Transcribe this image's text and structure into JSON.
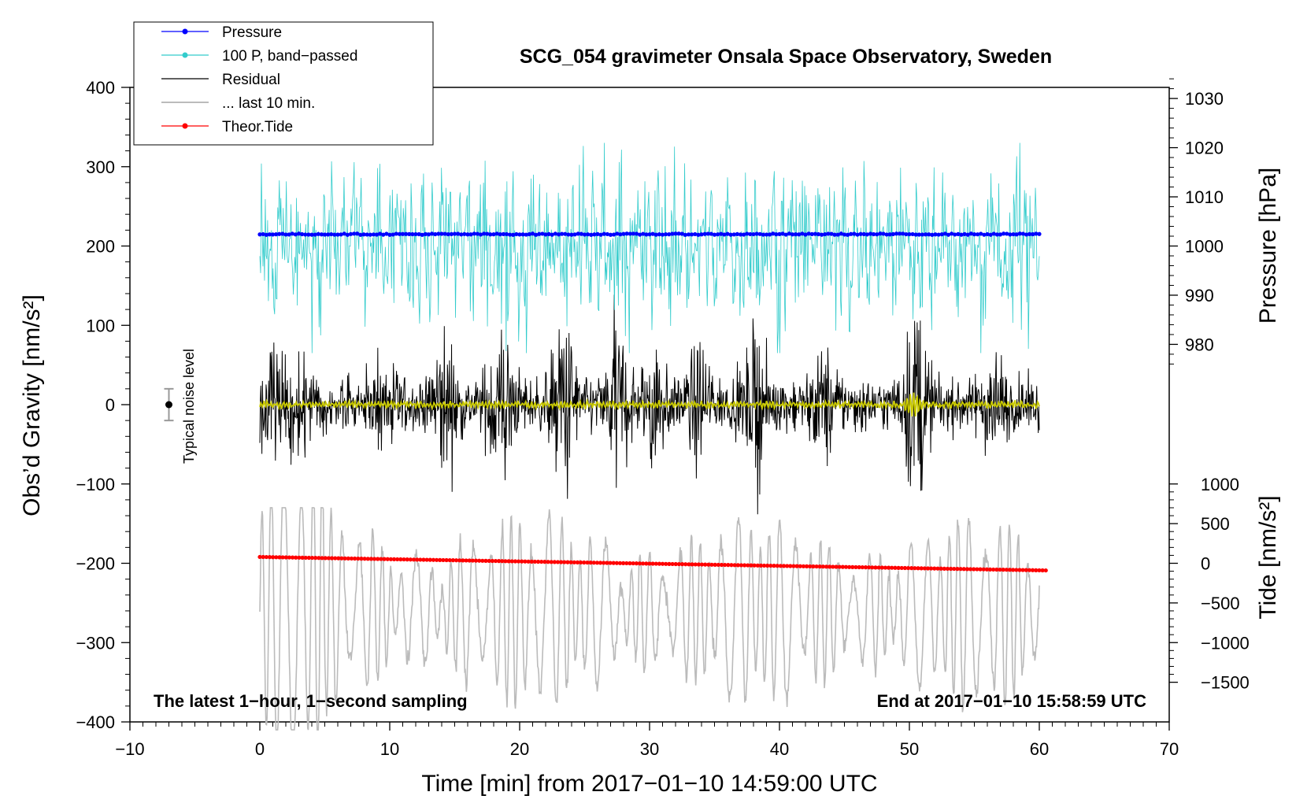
{
  "chart_data": {
    "type": "line",
    "title": "SCG_054 gravimeter Onsala Space Observatory, Sweden",
    "xlabel": "Time [min] from 2017−01−10 14:59:00 UTC",
    "ylabel": "Obs’d Gravity [nm/s²]",
    "xlim": [
      -10,
      70
    ],
    "ylim": [
      -400,
      400
    ],
    "x_ticks": [
      {
        "value": -10,
        "label": "−10"
      },
      {
        "value": 0,
        "label": "0"
      },
      {
        "value": 10,
        "label": "10"
      },
      {
        "value": 20,
        "label": "20"
      },
      {
        "value": 30,
        "label": "30"
      },
      {
        "value": 40,
        "label": "40"
      },
      {
        "value": 50,
        "label": "50"
      },
      {
        "value": 60,
        "label": "60"
      },
      {
        "value": 70,
        "label": "70"
      }
    ],
    "y_ticks": [
      {
        "value": 400,
        "label": "400"
      },
      {
        "value": 300,
        "label": "300"
      },
      {
        "value": 200,
        "label": "200"
      },
      {
        "value": 100,
        "label": "100"
      },
      {
        "value": 0,
        "label": "0"
      },
      {
        "value": -100,
        "label": "−100"
      },
      {
        "value": -200,
        "label": "−200"
      },
      {
        "value": -300,
        "label": "−300"
      },
      {
        "value": -400,
        "label": "−400"
      }
    ],
    "pressure_axis": {
      "label": "Pressure [hPa]",
      "ticks": [
        {
          "value": 1030,
          "label": "1030"
        },
        {
          "value": 1020,
          "label": "1020"
        },
        {
          "value": 1010,
          "label": "1010"
        },
        {
          "value": 1000,
          "label": "1000"
        },
        {
          "value": 990,
          "label": "990"
        },
        {
          "value": 980,
          "label": "980"
        }
      ],
      "gravity_at_1000hPa": 200,
      "gravity_per_hPa": 6.2
    },
    "tide_axis": {
      "label": "Tide [nm/s²]",
      "ticks": [
        {
          "value": 1000,
          "label": "1000"
        },
        {
          "value": 500,
          "label": "500"
        },
        {
          "value": 0,
          "label": "0"
        },
        {
          "value": -500,
          "label": "−500"
        },
        {
          "value": -1000,
          "label": "−1000"
        },
        {
          "value": -1500,
          "label": "−1500"
        }
      ],
      "gravity_at_zero": -200,
      "gravity_per_unit": 0.1
    },
    "series": [
      {
        "name": "Pressure",
        "axis": "pressure",
        "x": [
          0,
          60
        ],
        "y": [
          1002.4,
          1002.4
        ],
        "style": "line-markers",
        "color": "#0000ff"
      },
      {
        "name": "100 P, band−passed",
        "axis": "gravity",
        "x_range": [
          0,
          60
        ],
        "center": 200,
        "style": "line",
        "color": "#33cccc"
      },
      {
        "name": "Residual",
        "axis": "gravity",
        "x_range": [
          0,
          60
        ],
        "center": 0,
        "style": "line",
        "color": "#000000"
      },
      {
        "name": "... last 10 min.",
        "axis": "gravity",
        "x_range": [
          0,
          60
        ],
        "center": -260,
        "style": "line",
        "color": "#bbbbbb"
      },
      {
        "name": "Theor.Tide",
        "axis": "tide",
        "x": [
          0,
          60.5
        ],
        "y": [
          80,
          -90
        ],
        "style": "line-markers",
        "color": "#ff0000"
      },
      {
        "name": "",
        "axis": "gravity",
        "x_range": [
          0,
          60
        ],
        "center": 0,
        "style": "line",
        "color": "#c8c800"
      }
    ],
    "noise_marker": {
      "label": "Typical noise level",
      "x": -7,
      "y": 0,
      "error": 20
    },
    "annotations": {
      "left": "The latest 1−hour, 1−second sampling",
      "right": "End at 2017−01−10 15:58:59 UTC"
    },
    "legend_position": "top-left"
  }
}
